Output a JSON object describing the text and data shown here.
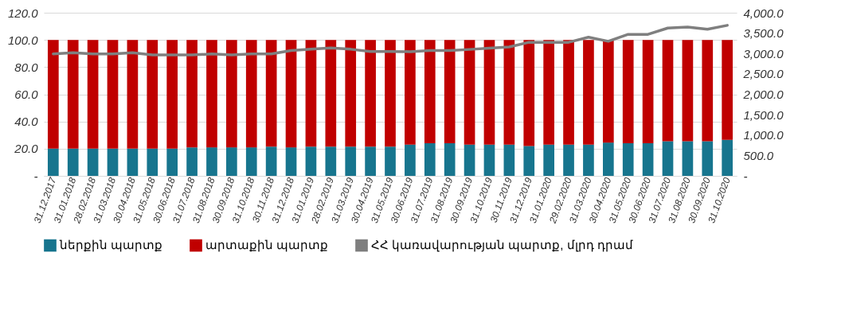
{
  "chart_data": {
    "type": "bar",
    "stacked": true,
    "categories": [
      "31.12.2017",
      "31.01.2018",
      "28.02.2018",
      "31.03.2018",
      "30.04.2018",
      "31.05.2018",
      "30.06.2018",
      "31.07.2018",
      "31.08.2018",
      "30.09.2018",
      "31.10.2018",
      "30.11.2018",
      "31.12.2018",
      "31.01.2019",
      "28.02.2019",
      "31.03.2019",
      "30.04.2019",
      "31.05.2019",
      "30.06.2019",
      "31.07.2019",
      "31.08.2019",
      "30.09.2019",
      "31.10.2019",
      "30.11.2019",
      "31.12.2019",
      "31.01.2020",
      "29.02.2020",
      "31.03.2020",
      "30.04.2020",
      "31.05.2020",
      "30.06.2020",
      "31.07.2020",
      "31.08.2020",
      "30.09.2020",
      "31.10.2020"
    ],
    "series": [
      {
        "name": "ներքին պարտք",
        "color": "#17758e",
        "values": [
          20,
          20,
          20,
          20,
          20,
          20,
          20,
          21,
          21,
          21,
          21,
          21.5,
          21,
          21.5,
          21.5,
          21.5,
          21.5,
          21.5,
          23,
          24,
          24,
          23,
          23,
          23,
          22,
          23,
          23,
          23,
          24.5,
          24,
          24,
          25.5,
          25.5,
          25.5,
          26.5
        ]
      },
      {
        "name": "արտաքին պարտք",
        "color": "#c00000",
        "values": [
          80,
          80,
          80,
          80,
          80,
          80,
          80,
          79,
          79,
          79,
          79,
          78.5,
          79,
          78.5,
          78.5,
          78.5,
          78.5,
          78.5,
          77,
          76,
          76,
          77,
          77,
          77,
          78,
          77,
          77,
          77,
          75.5,
          76,
          76,
          74.5,
          74.5,
          74.5,
          73.5
        ]
      },
      {
        "name": "ՀՀ կառավարության պարտք, մլրդ դրամ",
        "type": "line",
        "axis": "y2",
        "color": "#7f7f7f",
        "values": [
          2990,
          3020,
          2990,
          2990,
          3020,
          2965,
          2965,
          2965,
          2990,
          2965,
          2990,
          2990,
          3075,
          3105,
          3135,
          3105,
          3050,
          3050,
          3045,
          3075,
          3075,
          3100,
          3130,
          3160,
          3275,
          3275,
          3275,
          3400,
          3300,
          3470,
          3470,
          3625,
          3650,
          3595,
          3690
        ]
      }
    ],
    "ylim": [
      0,
      120
    ],
    "yticks": [
      {
        "value": 0,
        "label": "-"
      },
      {
        "value": 20,
        "label": "20.0"
      },
      {
        "value": 40,
        "label": "40.0"
      },
      {
        "value": 60,
        "label": "60.0"
      },
      {
        "value": 80,
        "label": "80.0"
      },
      {
        "value": 100,
        "label": "100.0"
      },
      {
        "value": 120,
        "label": "120.0"
      }
    ],
    "y2lim": [
      0,
      4000
    ],
    "y2ticks": [
      {
        "value": 0,
        "label": "-"
      },
      {
        "value": 500,
        "label": "500.0"
      },
      {
        "value": 1000,
        "label": "1,000.0"
      },
      {
        "value": 1500,
        "label": "1,500.0"
      },
      {
        "value": 2000,
        "label": "2,000.0"
      },
      {
        "value": 2500,
        "label": "2,500.0"
      },
      {
        "value": 3000,
        "label": "3,000.0"
      },
      {
        "value": 3500,
        "label": "3,500.0"
      },
      {
        "value": 4000,
        "label": "4,000.0"
      }
    ],
    "grid": "y",
    "legend": "bottom"
  }
}
